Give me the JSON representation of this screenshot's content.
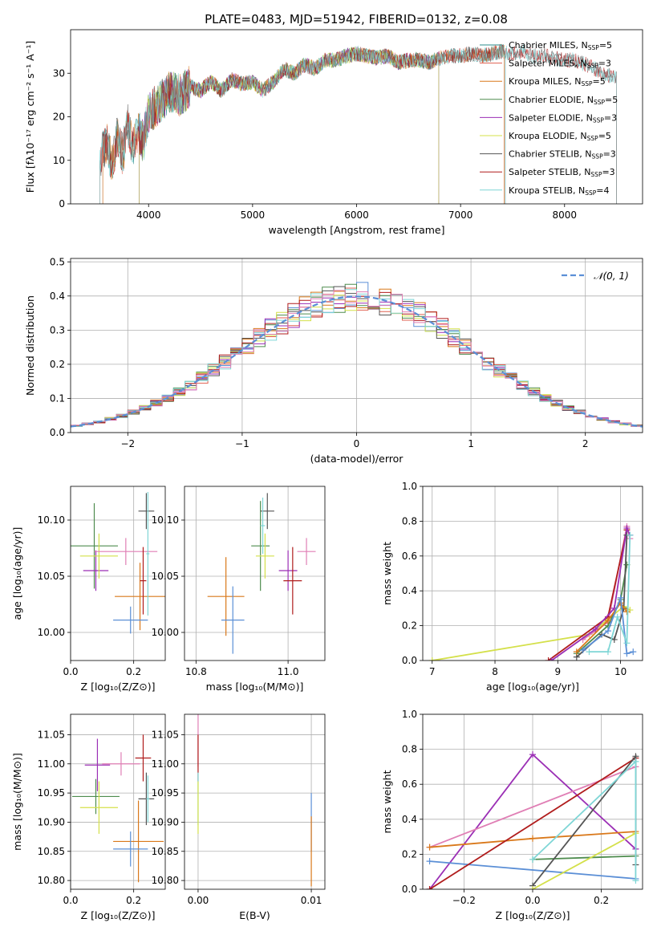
{
  "figure_title": "PLATE=0483, MJD=51942, FIBERID=0132, z=0.08",
  "chart_data": [
    {
      "id": "spectrum",
      "type": "line",
      "xlabel": "wavelength [Angstrom, rest frame]",
      "ylabel": "Flux [fλ10⁻¹⁷ erg cm⁻² s⁻¹ A⁻¹]",
      "xlim": [
        3250,
        8750
      ],
      "ylim": [
        0,
        40
      ],
      "xticks": [
        4000,
        5000,
        6000,
        7000,
        8000
      ],
      "yticks": [
        0,
        10,
        20,
        30
      ],
      "legend_position": "right",
      "anchors": [
        [
          3500,
          6
        ],
        [
          3550,
          12
        ],
        [
          3600,
          14
        ],
        [
          3650,
          9
        ],
        [
          3700,
          16
        ],
        [
          3750,
          11
        ],
        [
          3800,
          18
        ],
        [
          3850,
          13
        ],
        [
          3900,
          17
        ],
        [
          3950,
          14
        ],
        [
          4000,
          21
        ],
        [
          4050,
          22
        ],
        [
          4100,
          23
        ],
        [
          4200,
          26
        ],
        [
          4300,
          25
        ],
        [
          4400,
          27
        ],
        [
          4500,
          26
        ],
        [
          4600,
          28
        ],
        [
          4700,
          26
        ],
        [
          4800,
          28.5
        ],
        [
          4900,
          27.5
        ],
        [
          5000,
          28
        ],
        [
          5100,
          26
        ],
        [
          5200,
          28
        ],
        [
          5300,
          31
        ],
        [
          5400,
          30
        ],
        [
          5500,
          32
        ],
        [
          5600,
          31
        ],
        [
          5700,
          33
        ],
        [
          5800,
          33
        ],
        [
          5900,
          34
        ],
        [
          6000,
          34.5
        ],
        [
          6100,
          34
        ],
        [
          6200,
          33.5
        ],
        [
          6300,
          34
        ],
        [
          6400,
          32.5
        ],
        [
          6500,
          33
        ],
        [
          6600,
          33
        ],
        [
          6700,
          32.5
        ],
        [
          6800,
          33.5
        ],
        [
          6900,
          34
        ],
        [
          7000,
          34
        ],
        [
          7100,
          34.5
        ],
        [
          7200,
          34
        ],
        [
          7300,
          34.5
        ],
        [
          7400,
          35
        ],
        [
          7500,
          34.5
        ],
        [
          7600,
          35
        ],
        [
          7700,
          34
        ],
        [
          7800,
          34
        ],
        [
          7900,
          33.5
        ],
        [
          8000,
          33
        ],
        [
          8100,
          33
        ],
        [
          8200,
          32
        ],
        [
          8300,
          31
        ],
        [
          8400,
          29.5
        ]
      ],
      "series": [
        {
          "name": "Chabrier MILES, N_SSP=5",
          "label": "Chabrier MILES, N",
          "sub": "SSP",
          "count": "=5",
          "color": "#2b8b8b",
          "xmin": 3560,
          "xmax": 7430
        },
        {
          "name": "Salpeter MILES, N_SSP=3",
          "label": "Salpeter MILES, N",
          "sub": "SSP",
          "count": "=3",
          "color": "#e06050",
          "xmin": 3560,
          "xmax": 7420
        },
        {
          "name": "Kroupa MILES, N_SSP=5",
          "label": "Kroupa MILES, N",
          "sub": "SSP",
          "count": "=5",
          "color": "#d9781a",
          "xmin": 3560,
          "xmax": 7420
        },
        {
          "name": "Chabrier ELODIE, N_SSP=5",
          "label": "Chabrier ELODIE, N",
          "sub": "SSP",
          "count": "=5",
          "color": "#4e8c4e",
          "xmin": 3910,
          "xmax": 6790
        },
        {
          "name": "Salpeter ELODIE, N_SSP=3",
          "label": "Salpeter ELODIE, N",
          "sub": "SSP",
          "count": "=3",
          "color": "#9b2fb5",
          "xmin": 3910,
          "xmax": 6790
        },
        {
          "name": "Kroupa ELODIE, N_SSP=5",
          "label": "Kroupa ELODIE, N",
          "sub": "SSP",
          "count": "=5",
          "color": "#d4e04a",
          "xmin": 3910,
          "xmax": 6790
        },
        {
          "name": "Chabrier STELIB, N_SSP=3",
          "label": "Chabrier STELIB, N",
          "sub": "SSP",
          "count": "=3",
          "color": "#555555",
          "xmin": 3530,
          "xmax": 8500
        },
        {
          "name": "Salpeter STELIB, N_SSP=3",
          "label": "Salpeter STELIB, N",
          "sub": "SSP",
          "count": "=3",
          "color": "#b01c1c",
          "xmin": 3530,
          "xmax": 8500
        },
        {
          "name": "Kroupa STELIB, N_SSP=4",
          "label": "Kroupa STELIB, N",
          "sub": "SSP",
          "count": "=4",
          "color": "#7fd6d6",
          "xmin": 3530,
          "xmax": 8500
        }
      ]
    },
    {
      "id": "residuals",
      "type": "line",
      "xlabel": "(data-model)/error",
      "ylabel": "Normed distribution",
      "xlim": [
        -2.5,
        2.5
      ],
      "ylim": [
        0,
        0.51
      ],
      "xticks": [
        -2,
        -1,
        0,
        1,
        2
      ],
      "yticks": [
        0.0,
        0.1,
        0.2,
        0.3,
        0.4,
        0.5
      ],
      "grid": true,
      "legend_position": "top-right",
      "gaussian_label": "𝒩(0, 1)",
      "gaussian_color": "#5b8fd6",
      "bin_width": 0.1,
      "hist_colors": [
        "#5b8fd6",
        "#e06050",
        "#d9781a",
        "#4e8c4e",
        "#9b2fb5",
        "#d4e04a",
        "#555555",
        "#b01c1c",
        "#7fd6d6",
        "#e07fb5"
      ]
    },
    {
      "id": "age_vs_Z",
      "type": "scatter",
      "xlabel": "Z [log₁₀(Z/Z⊙)]",
      "ylabel": "age  [log₁₀(age/yr)]",
      "xlim": [
        0,
        0.3
      ],
      "ylim": [
        9.975,
        10.13
      ],
      "xticks": [
        0.0,
        0.2
      ],
      "yticks": [
        10.0,
        10.05,
        10.1
      ],
      "grid": true,
      "points": [
        {
          "x": 0.075,
          "y": 10.077,
          "xerr": 0.075,
          "yerr": 0.038,
          "color": "#4e8c4e"
        },
        {
          "x": 0.08,
          "y": 10.055,
          "xerr": 0.04,
          "yerr": 0.018,
          "color": "#9b2fb5"
        },
        {
          "x": 0.09,
          "y": 10.068,
          "xerr": 0.06,
          "yerr": 0.02,
          "color": "#d4e04a"
        },
        {
          "x": 0.175,
          "y": 10.072,
          "xerr": 0.1,
          "yerr": 0.012,
          "color": "#e07fb5"
        },
        {
          "x": 0.24,
          "y": 10.108,
          "xerr": 0.025,
          "yerr": 0.016,
          "color": "#555555"
        },
        {
          "x": 0.22,
          "y": 10.032,
          "xerr": 0.08,
          "yerr": 0.03,
          "color": "#d9781a"
        },
        {
          "x": 0.19,
          "y": 10.011,
          "xerr": 0.055,
          "yerr": 0.012,
          "color": "#5b8fd6"
        },
        {
          "x": 0.23,
          "y": 10.046,
          "xerr": 0.01,
          "yerr": 0.03,
          "color": "#b01c1c"
        },
        {
          "x": 0.245,
          "y": 10.07,
          "xerr": 0.005,
          "yerr": 0.055,
          "color": "#7fd6d6"
        }
      ]
    },
    {
      "id": "age_vs_mass",
      "type": "scatter",
      "xlabel": "mass [log₁₀(M/M⊙)]",
      "ylabel": "",
      "xlim": [
        10.775,
        11.08
      ],
      "ylim": [
        9.975,
        10.13
      ],
      "xticks": [
        10.8,
        11.0
      ],
      "yticks": [
        10.0,
        10.05,
        10.1
      ],
      "grid": true,
      "points": [
        {
          "x": 10.94,
          "y": 10.077,
          "xerr": 0.02,
          "yerr": 0.04,
          "color": "#4e8c4e"
        },
        {
          "x": 10.955,
          "y": 10.108,
          "xerr": 0.015,
          "yerr": 0.016,
          "color": "#555555"
        },
        {
          "x": 10.95,
          "y": 10.068,
          "xerr": 0.02,
          "yerr": 0.02,
          "color": "#d4e04a"
        },
        {
          "x": 11.0,
          "y": 10.055,
          "xerr": 0.02,
          "yerr": 0.018,
          "color": "#9b2fb5"
        },
        {
          "x": 11.04,
          "y": 10.072,
          "xerr": 0.02,
          "yerr": 0.012,
          "color": "#e07fb5"
        },
        {
          "x": 11.01,
          "y": 10.046,
          "xerr": 0.02,
          "yerr": 0.03,
          "color": "#b01c1c"
        },
        {
          "x": 10.865,
          "y": 10.032,
          "xerr": 0.04,
          "yerr": 0.035,
          "color": "#d9781a"
        },
        {
          "x": 10.88,
          "y": 10.011,
          "xerr": 0.025,
          "yerr": 0.03,
          "color": "#5b8fd6"
        },
        {
          "x": 10.945,
          "y": 10.095,
          "xerr": 0.005,
          "yerr": 0.025,
          "color": "#7fd6d6"
        }
      ]
    },
    {
      "id": "weight_vs_age",
      "type": "line",
      "xlabel": "age  [log₁₀(age/yr)]",
      "ylabel": "mass weight",
      "xlim": [
        6.85,
        10.35
      ],
      "ylim": [
        0,
        1.0
      ],
      "xticks": [
        7,
        8,
        9,
        10
      ],
      "yticks": [
        0.0,
        0.2,
        0.4,
        0.6,
        0.8,
        1.0
      ],
      "grid": true,
      "series": [
        {
          "color": "#d4e04a",
          "x": [
            7.0,
            9.5,
            10.05,
            10.15
          ],
          "y": [
            0.0,
            0.15,
            0.31,
            0.29
          ]
        },
        {
          "color": "#e07fb5",
          "x": [
            9.4,
            9.8,
            10.1,
            10.15
          ],
          "y": [
            0.12,
            0.22,
            0.77,
            0.7
          ]
        },
        {
          "color": "#b01c1c",
          "x": [
            8.85,
            9.8,
            10.1
          ],
          "y": [
            0.0,
            0.25,
            0.75
          ]
        },
        {
          "color": "#9b2fb5",
          "x": [
            8.9,
            9.6,
            9.9,
            10.1,
            10.15
          ],
          "y": [
            0.0,
            0.18,
            0.3,
            0.76,
            0.72
          ]
        },
        {
          "color": "#4e8c4e",
          "x": [
            9.3,
            9.8,
            10.0,
            10.1
          ],
          "y": [
            0.04,
            0.2,
            0.35,
            0.55
          ]
        },
        {
          "color": "#555555",
          "x": [
            9.3,
            9.7,
            9.9,
            10.05,
            10.1
          ],
          "y": [
            0.02,
            0.15,
            0.12,
            0.3,
            0.72
          ]
        },
        {
          "color": "#d9781a",
          "x": [
            9.3,
            9.8,
            10.0,
            10.1
          ],
          "y": [
            0.05,
            0.23,
            0.33,
            0.28
          ]
        },
        {
          "color": "#5b8fd6",
          "x": [
            9.4,
            9.8,
            10.0,
            10.1,
            10.2
          ],
          "y": [
            0.06,
            0.17,
            0.36,
            0.04,
            0.05
          ]
        },
        {
          "color": "#7fd6d6",
          "x": [
            9.5,
            9.8,
            9.95,
            10.1,
            10.15
          ],
          "y": [
            0.05,
            0.05,
            0.25,
            0.1,
            0.72
          ]
        }
      ]
    },
    {
      "id": "mass_vs_Z",
      "type": "scatter",
      "xlabel": "Z [log₁₀(Z/Z⊙)]",
      "ylabel": "mass [log₁₀(M/M⊙)]",
      "xlim": [
        0,
        0.3
      ],
      "ylim": [
        10.785,
        11.085
      ],
      "xticks": [
        0.0,
        0.2
      ],
      "yticks": [
        10.8,
        10.85,
        10.9,
        10.95,
        11.0,
        11.05
      ],
      "grid": true,
      "points": [
        {
          "x": 0.08,
          "y": 10.944,
          "xerr": 0.075,
          "yerr": 0.03,
          "color": "#4e8c4e"
        },
        {
          "x": 0.09,
          "y": 10.925,
          "xerr": 0.06,
          "yerr": 0.045,
          "color": "#d4e04a"
        },
        {
          "x": 0.085,
          "y": 10.998,
          "xerr": 0.04,
          "yerr": 0.045,
          "color": "#9b2fb5"
        },
        {
          "x": 0.16,
          "y": 11.0,
          "xerr": 0.06,
          "yerr": 0.02,
          "color": "#e07fb5"
        },
        {
          "x": 0.23,
          "y": 11.01,
          "xerr": 0.025,
          "yerr": 0.04,
          "color": "#b01c1c"
        },
        {
          "x": 0.24,
          "y": 10.94,
          "xerr": 0.025,
          "yerr": 0.045,
          "color": "#555555"
        },
        {
          "x": 0.215,
          "y": 10.867,
          "xerr": 0.08,
          "yerr": 0.07,
          "color": "#d9781a"
        },
        {
          "x": 0.19,
          "y": 10.854,
          "xerr": 0.055,
          "yerr": 0.03,
          "color": "#5b8fd6"
        },
        {
          "x": 0.245,
          "y": 10.94,
          "xerr": 0.005,
          "yerr": 0.04,
          "color": "#7fd6d6"
        }
      ]
    },
    {
      "id": "mass_vs_EBV",
      "type": "scatter",
      "xlabel": "E(B-V)",
      "ylabel": "",
      "xlim": [
        -0.0012,
        0.0112
      ],
      "ylim": [
        10.785,
        11.085
      ],
      "xticks": [
        0.0,
        0.01
      ],
      "yticks": [
        10.8,
        10.85,
        10.9,
        10.95,
        11.0,
        11.05
      ],
      "grid": true,
      "points": [
        {
          "x": 0.0,
          "y": 11.04,
          "xerr": 0,
          "yerr": 0.045,
          "color": "#e07fb5"
        },
        {
          "x": 0.0,
          "y": 11.01,
          "xerr": 0,
          "yerr": 0.04,
          "color": "#b01c1c"
        },
        {
          "x": 0.0,
          "y": 10.94,
          "xerr": 0,
          "yerr": 0.045,
          "color": "#7fd6d6"
        },
        {
          "x": 0.0,
          "y": 10.925,
          "xerr": 0,
          "yerr": 0.045,
          "color": "#d4e04a"
        },
        {
          "x": 0.01,
          "y": 10.9,
          "xerr": 0,
          "yerr": 0.05,
          "color": "#5b8fd6"
        },
        {
          "x": 0.01,
          "y": 10.85,
          "xerr": 0,
          "yerr": 0.06,
          "color": "#d9781a"
        }
      ]
    },
    {
      "id": "weight_vs_Z",
      "type": "line",
      "xlabel": "Z [log₁₀(Z/Z⊙)]",
      "ylabel": "mass weight",
      "xlim": [
        -0.32,
        0.32
      ],
      "ylim": [
        0,
        1.0
      ],
      "xticks": [
        -0.2,
        0.0,
        0.2
      ],
      "yticks": [
        0.0,
        0.2,
        0.4,
        0.6,
        0.8,
        1.0
      ],
      "grid": true,
      "series": [
        {
          "color": "#9b2fb5",
          "x": [
            -0.3,
            0.0,
            0.3
          ],
          "y": [
            0.0,
            0.77,
            0.23
          ]
        },
        {
          "color": "#e07fb5",
          "x": [
            -0.3,
            0.3
          ],
          "y": [
            0.24,
            0.7
          ]
        },
        {
          "color": "#d9781a",
          "x": [
            -0.3,
            0.0,
            0.3
          ],
          "y": [
            0.24,
            0.29,
            0.33
          ]
        },
        {
          "color": "#5b8fd6",
          "x": [
            -0.3,
            0.3
          ],
          "y": [
            0.16,
            0.06
          ]
        },
        {
          "color": "#b01c1c",
          "x": [
            -0.3,
            0.3
          ],
          "y": [
            0.0,
            0.75
          ]
        },
        {
          "color": "#4e8c4e",
          "x": [
            0.0,
            0.3
          ],
          "y": [
            0.17,
            0.19
          ]
        },
        {
          "color": "#555555",
          "x": [
            0.0,
            0.3,
            0.3
          ],
          "y": [
            0.02,
            0.76,
            0.14
          ]
        },
        {
          "color": "#d4e04a",
          "x": [
            0.0,
            0.3
          ],
          "y": [
            0.0,
            0.32
          ]
        },
        {
          "color": "#7fd6d6",
          "x": [
            0.0,
            0.3,
            0.3
          ],
          "y": [
            0.17,
            0.73,
            0.05
          ]
        }
      ]
    }
  ]
}
